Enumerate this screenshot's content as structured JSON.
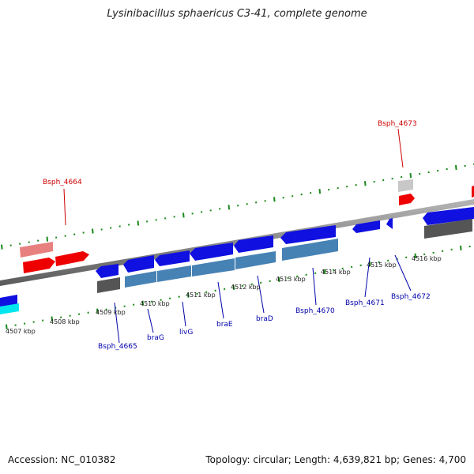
{
  "title": "Lysinibacillus sphaericus C3-41, complete genome",
  "footer": {
    "accession": "Accession: NC_010382",
    "summary": "Topology: circular; Length: 4,639,821 bp; Genes: 4,700"
  },
  "ticks": [
    "4507 kbp",
    "4508 kbp",
    "4509 kbp",
    "4510 kbp",
    "4511 kbp",
    "4512 kbp",
    "4513 kbp",
    "4514 kbp",
    "4515 kbp",
    "4516 kbp"
  ],
  "labels_top": [
    "Bsph_4664",
    "Bsph_4673"
  ],
  "labels_bottom": [
    "Bsph_4665",
    "braG",
    "livG",
    "braE",
    "braD",
    "Bsph_4670",
    "Bsph_4671",
    "Bsph_4672"
  ],
  "colors": {
    "forward": "#ee0000",
    "forward_light": "#e88080",
    "reverse": "#1010e0",
    "reverse_cds": "#4682b4",
    "gray_box": "#555555",
    "cyan": "#00e5ee",
    "backbone": "#8a8a8a",
    "ruler": "#1a8a1a",
    "label_top": "#cc0000",
    "label_bottom": "#0000aa"
  }
}
